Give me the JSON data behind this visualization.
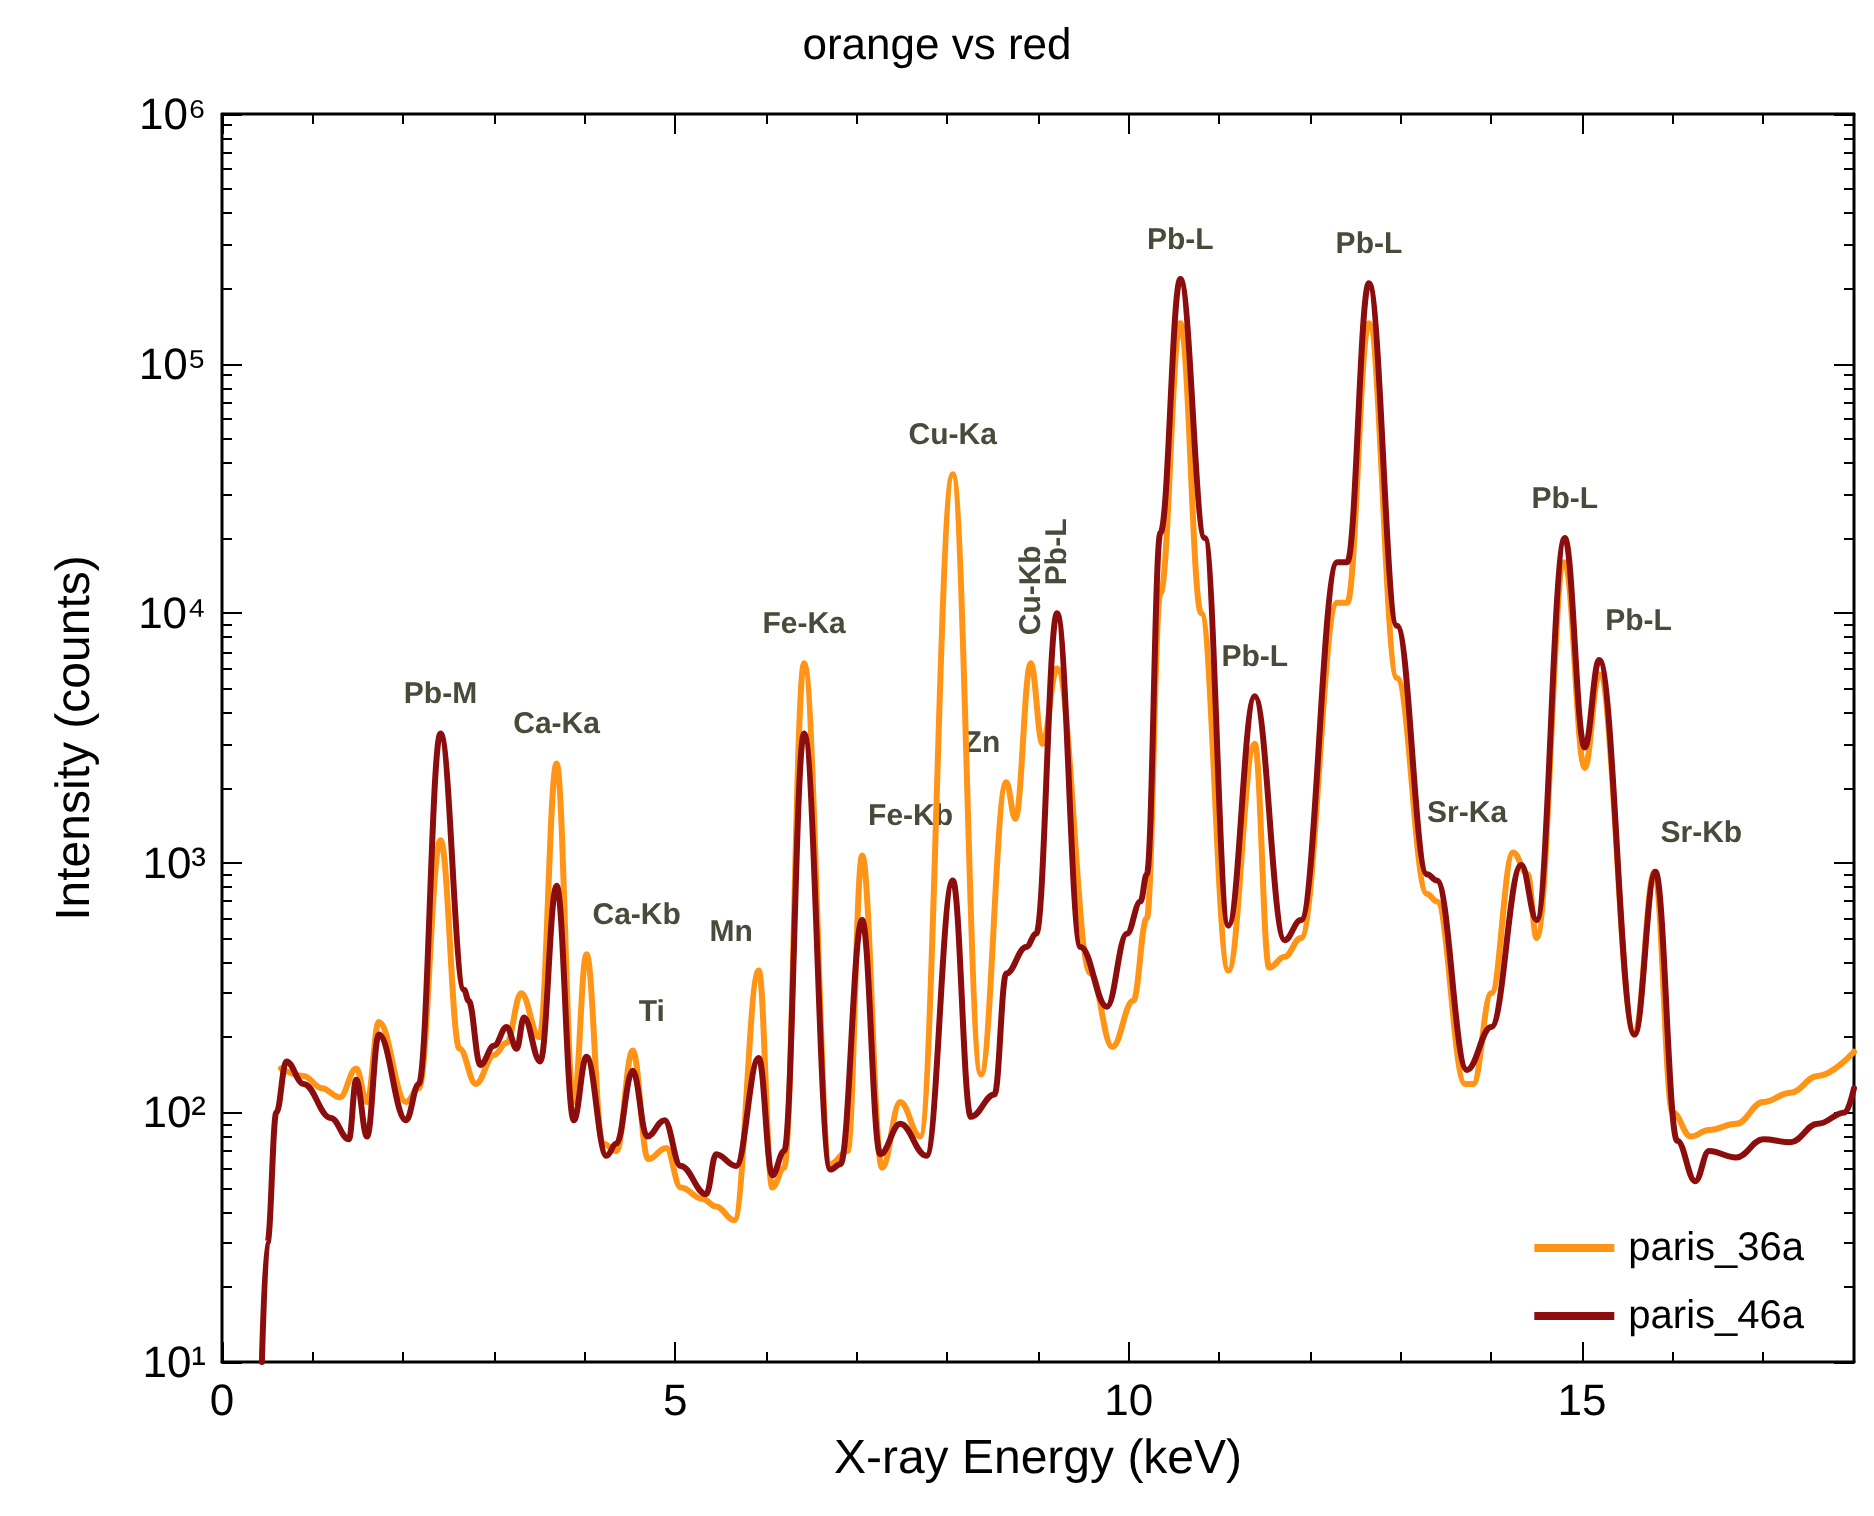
{
  "chart_data": {
    "type": "line",
    "title": "orange vs red",
    "xlabel": "X-ray Energy (keV)",
    "ylabel": "Intensity (counts)",
    "log": "y",
    "xlim": [
      0,
      18
    ],
    "xticks": [
      0,
      5,
      10,
      15
    ],
    "ylim": [
      10,
      1000000
    ],
    "yticks": [
      {
        "value": 10,
        "label": "10¹"
      },
      {
        "value": 100,
        "label": "10²"
      },
      {
        "value": 1000,
        "label": "10³"
      },
      {
        "value": 10000,
        "label": "10⁴"
      },
      {
        "value": 100000,
        "label": "10⁵"
      },
      {
        "value": 1000000,
        "label": "10⁶"
      }
    ],
    "grid": false,
    "legend": "bottom right",
    "marker": "none",
    "line_style": "solid",
    "series": [
      {
        "name": "paris_36a",
        "color": "#ff9416",
        "x": [
          0.65,
          0.9,
          1.1,
          1.3,
          1.48,
          1.6,
          1.73,
          2.03,
          2.17,
          2.41,
          2.62,
          2.8,
          3.0,
          3.14,
          3.3,
          3.5,
          3.69,
          3.88,
          4.02,
          4.2,
          4.35,
          4.53,
          4.7,
          4.9,
          5.06,
          5.3,
          5.45,
          5.65,
          5.92,
          6.07,
          6.2,
          6.42,
          6.71,
          6.9,
          7.06,
          7.28,
          7.48,
          7.7,
          8.06,
          8.37,
          8.65,
          8.75,
          8.92,
          9.05,
          9.21,
          9.58,
          9.82,
          10.05,
          10.2,
          10.35,
          10.57,
          10.8,
          11.1,
          11.39,
          11.55,
          11.72,
          11.9,
          12.3,
          12.41,
          12.65,
          12.96,
          13.29,
          13.4,
          13.71,
          13.8,
          14.0,
          14.24,
          14.4,
          14.5,
          14.81,
          15.03,
          15.19,
          15.58,
          15.8,
          16.0,
          16.2,
          16.4,
          16.7,
          17.0,
          17.3,
          17.6,
          18.0
        ],
        "values": [
          150,
          140,
          125,
          115,
          150,
          110,
          230,
          110,
          125,
          1230,
          180,
          130,
          170,
          190,
          300,
          200,
          2500,
          110,
          430,
          75,
          70,
          177,
          65,
          72,
          50,
          45,
          42,
          37,
          370,
          50,
          60,
          6300,
          62,
          70,
          1070,
          60,
          110,
          80,
          36000,
          142,
          2100,
          1500,
          6300,
          3000,
          6000,
          360,
          183,
          280,
          600,
          12000,
          145000,
          10000,
          370,
          3000,
          380,
          420,
          500,
          11000,
          11000,
          145000,
          5500,
          750,
          700,
          130,
          130,
          300,
          1100,
          900,
          500,
          16000,
          2400,
          5700,
          205,
          920,
          100,
          80,
          85,
          90,
          110,
          120,
          140,
          175
        ]
      },
      {
        "name": "paris_46a",
        "color": "#8b0d0d",
        "x": [
          0.44,
          0.5,
          0.6,
          0.71,
          0.9,
          1.2,
          1.4,
          1.48,
          1.6,
          1.73,
          2.03,
          2.17,
          2.41,
          2.67,
          2.72,
          2.85,
          3.0,
          3.14,
          3.25,
          3.33,
          3.51,
          3.69,
          3.88,
          4.02,
          4.24,
          4.35,
          4.53,
          4.69,
          4.88,
          5.06,
          5.34,
          5.45,
          5.67,
          5.92,
          6.07,
          6.2,
          6.42,
          6.71,
          6.82,
          7.06,
          7.26,
          7.48,
          7.77,
          8.06,
          8.26,
          8.52,
          8.65,
          8.87,
          8.98,
          9.21,
          9.47,
          9.76,
          9.98,
          10.13,
          10.2,
          10.35,
          10.57,
          10.84,
          11.1,
          11.39,
          11.72,
          11.9,
          12.3,
          12.41,
          12.65,
          12.96,
          13.29,
          13.4,
          13.73,
          14.0,
          14.33,
          14.5,
          14.81,
          15.03,
          15.19,
          15.58,
          15.81,
          16.05,
          16.25,
          16.4,
          16.7,
          17.0,
          17.3,
          17.6,
          17.9,
          18.0
        ],
        "values": [
          10,
          30,
          100,
          160,
          130,
          95,
          78,
          135,
          80,
          205,
          93,
          130,
          3300,
          310,
          280,
          155,
          185,
          220,
          180,
          240,
          160,
          810,
          93,
          167,
          67,
          75,
          147,
          80,
          93,
          61,
          47,
          68,
          61,
          165,
          56,
          70,
          3300,
          59,
          62,
          590,
          68,
          90,
          67,
          850,
          96,
          118,
          360,
          460,
          520,
          10000,
          460,
          265,
          520,
          700,
          900,
          21000,
          218000,
          20000,
          560,
          4650,
          490,
          590,
          16000,
          16000,
          210000,
          8900,
          900,
          850,
          148,
          220,
          980,
          590,
          20000,
          2900,
          6500,
          205,
          920,
          77,
          53,
          70,
          66,
          78,
          76,
          90,
          100,
          125
        ]
      }
    ],
    "annotations": [
      {
        "text": "Pb-M",
        "x": 2.41,
        "y": 3300
      },
      {
        "text": "Ca-Ka",
        "x": 3.69,
        "y": 2500
      },
      {
        "text": "Ca-Kb",
        "x": 4.02,
        "y": 430
      },
      {
        "text": "Ti",
        "x": 4.53,
        "y": 177
      },
      {
        "text": "Mn",
        "x": 5.92,
        "y": 370
      },
      {
        "text": "Fe-Ka",
        "x": 6.42,
        "y": 6300
      },
      {
        "text": "Fe-Kb",
        "x": 7.06,
        "y": 1070
      },
      {
        "text": "Cu-Ka",
        "x": 8.06,
        "y": 36000
      },
      {
        "text": "Zn",
        "x": 8.65,
        "y": 2100
      },
      {
        "text": "Cu-Kb",
        "x": 8.92,
        "y": 6300
      },
      {
        "text": "Pb-L",
        "x": 9.21,
        "y": 10000
      },
      {
        "text": "Pb-L",
        "x": 10.57,
        "y": 218000
      },
      {
        "text": "Pb-L",
        "x": 11.39,
        "y": 4650
      },
      {
        "text": "Pb-L",
        "x": 12.65,
        "y": 210000
      },
      {
        "text": "Sr-Ka",
        "x": 14.24,
        "y": 1100
      },
      {
        "text": "Pb-L",
        "x": 14.81,
        "y": 20000
      },
      {
        "text": "Pb-L",
        "x": 15.19,
        "y": 6500
      },
      {
        "text": "Sr-Kb",
        "x": 15.8,
        "y": 920
      }
    ]
  }
}
